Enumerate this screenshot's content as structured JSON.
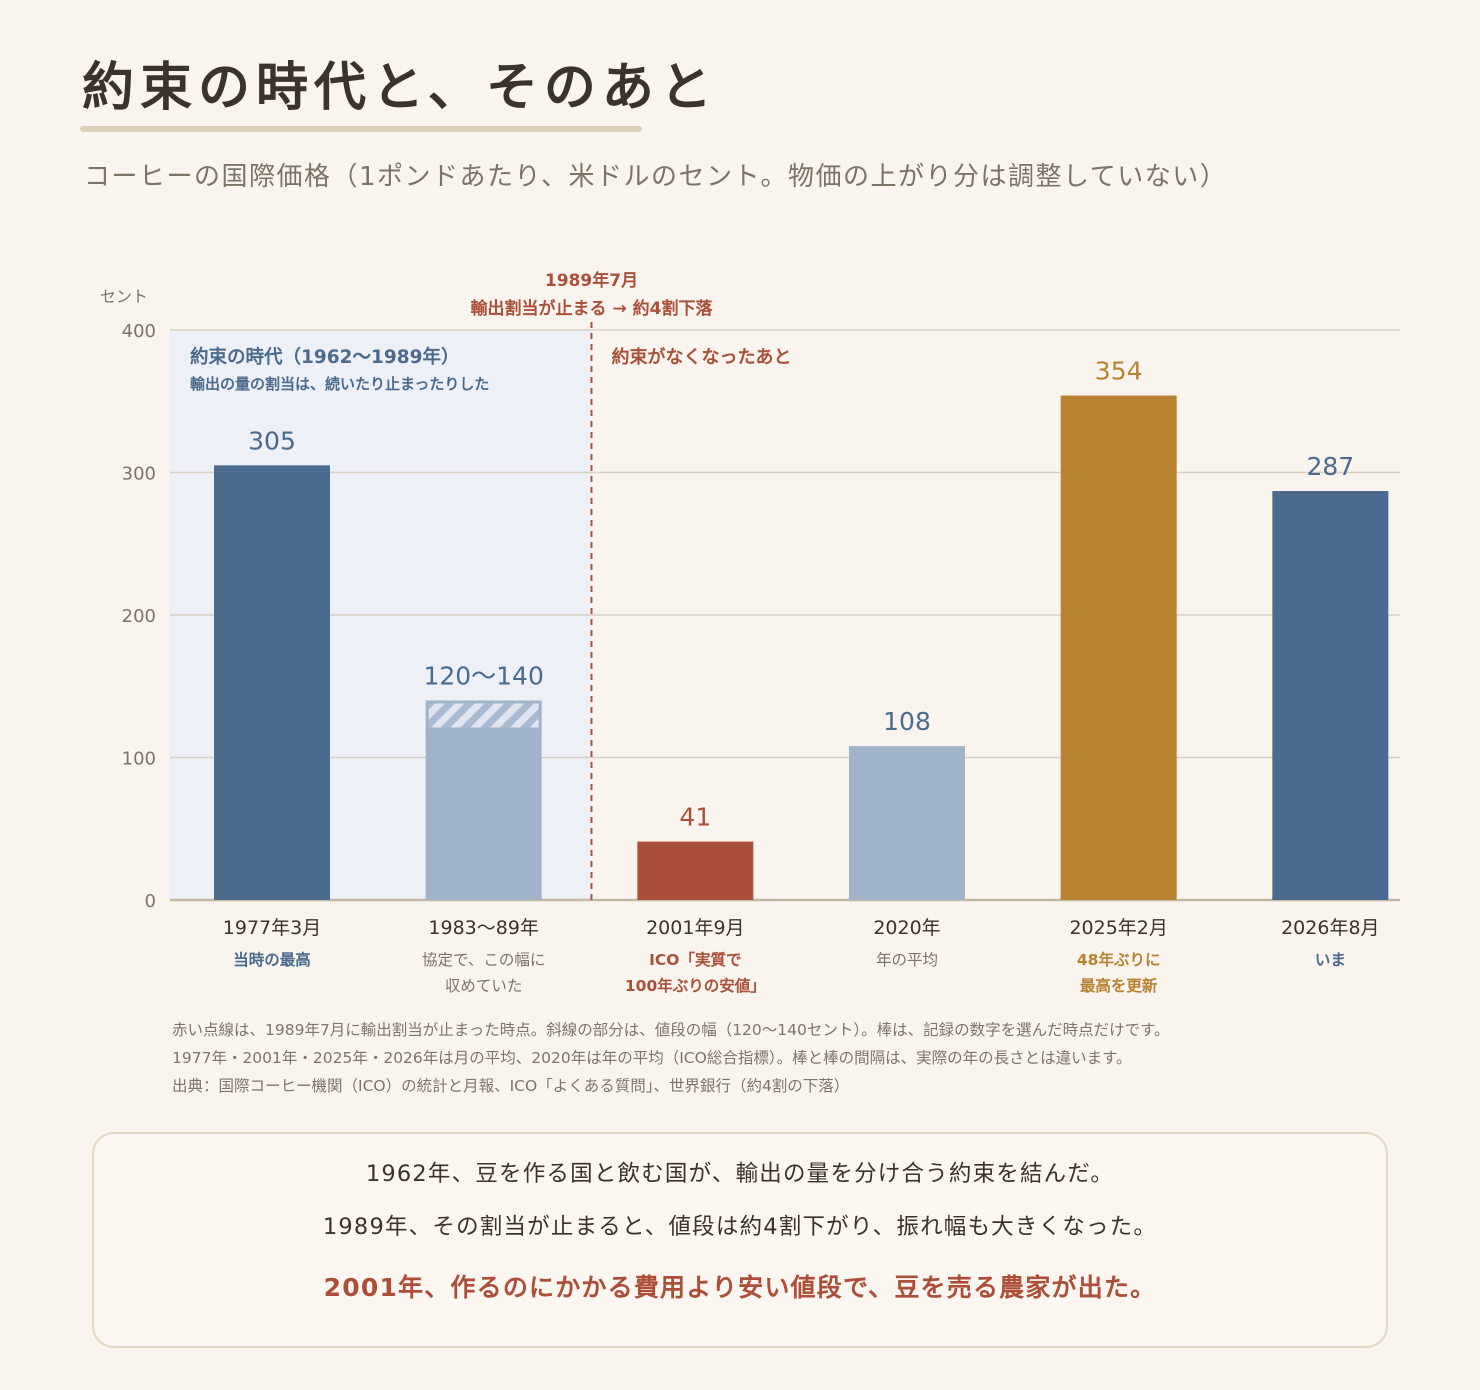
{
  "title": "約束の時代と、そのあと",
  "subtitle": "コーヒーの国際価格（1ポンドあたり、米ドルのセント。物価の上がり分は調整していない）",
  "colors": {
    "navy": "#4a6a8e",
    "light_blue": "#a0b3ca",
    "red": "#ab5038",
    "gold": "#b98232",
    "era_shade": "#edf0f7",
    "background": "#f9f5ee"
  },
  "chart_data": {
    "type": "bar",
    "yaxis_unit": "セント",
    "ylim": [
      0,
      400
    ],
    "yticks": [
      0,
      100,
      200,
      300,
      400
    ],
    "grid": true,
    "categories": [
      "1977年3月",
      "1983〜89年",
      "2001年9月",
      "2020年",
      "2025年2月",
      "2026年8月"
    ],
    "values": [
      305,
      140,
      41,
      108,
      354,
      287
    ],
    "range_bar": {
      "index": 1,
      "low": 120,
      "high": 140
    },
    "value_labels": [
      "305",
      "120〜140",
      "41",
      "108",
      "354",
      "287"
    ],
    "bar_colors": [
      "navy",
      "light_blue",
      "red",
      "light_blue",
      "gold",
      "navy"
    ],
    "sublabels": [
      [
        "当時の最高"
      ],
      [
        "協定で、この幅に",
        "収めていた"
      ],
      [
        "ICO「実質で",
        "100年ぶりの安値」"
      ],
      [
        "年の平均"
      ],
      [
        "48年ぶりに",
        "最高を更新"
      ],
      [
        "いま"
      ]
    ],
    "sublabel_colors": [
      "navy",
      "grey",
      "red",
      "grey",
      "gold",
      "navy"
    ],
    "era": {
      "title": "約束の時代（1962〜1989年）",
      "note": "輸出の量の割当は、続いたり止まったりした"
    },
    "after_label": "約束がなくなったあと",
    "divider": {
      "line1": "1989年7月",
      "line2": "輸出割当が止まる → 約4割下落"
    }
  },
  "notes": [
    "赤い点線は、1989年7月に輸出割当が止まった時点。斜線の部分は、値段の幅（120〜140セント）。棒は、記録の数字を選んだ時点だけです。",
    "1977年・2001年・2025年・2026年は月の平均、2020年は年の平均（ICO総合指標）。棒と棒の間隔は、実際の年の長さとは違います。",
    "出典：国際コーヒー機関（ICO）の統計と月報、ICO「よくある質問」、世界銀行（約4割の下落）"
  ],
  "summary": {
    "line1": "1962年、豆を作る国と飲む国が、輸出の量を分け合う約束を結んだ。",
    "line2": "1989年、その割当が止まると、値段は約4割下がり、振れ幅も大きくなった。",
    "line3": "2001年、作るのにかかる費用より安い値段で、豆を売る農家が出た。"
  }
}
